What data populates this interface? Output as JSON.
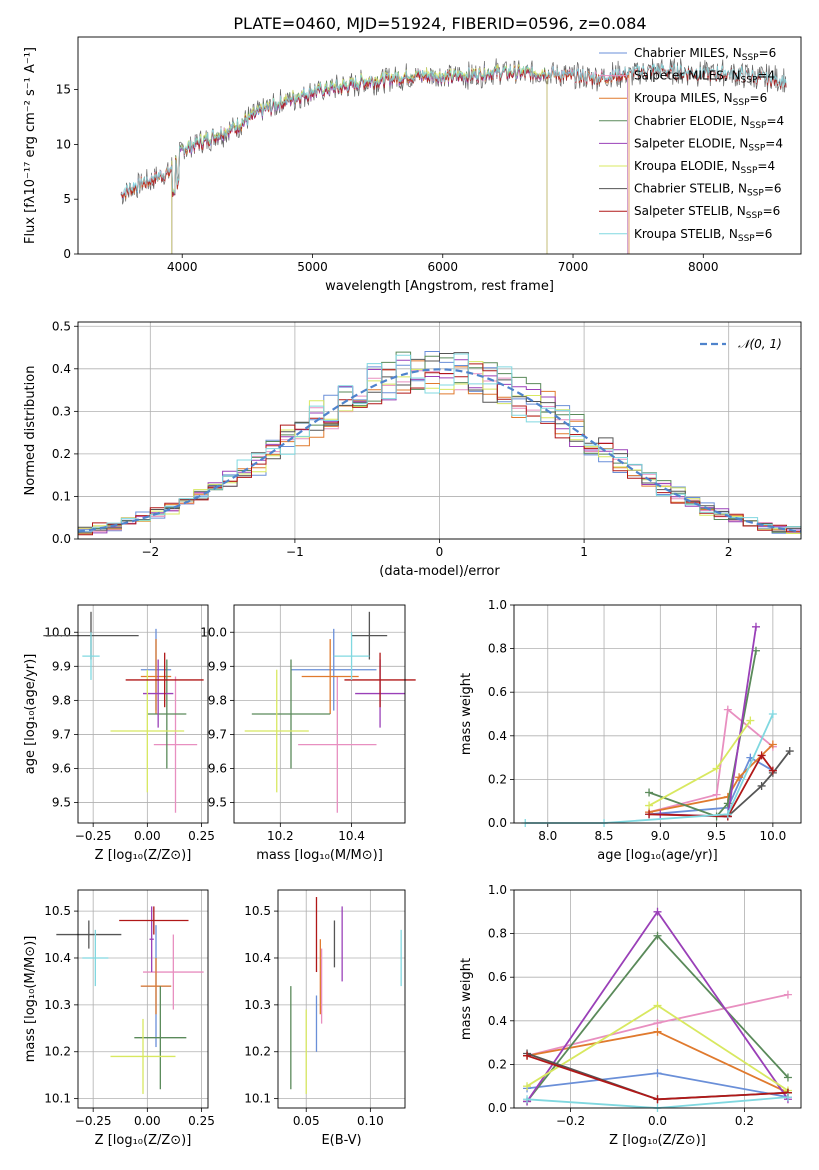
{
  "title": "PLATE=0460, MJD=51924, FIBERID=0596, z=0.084",
  "colors": [
    "#6a8fd8",
    "#e88fc0",
    "#e07a2e",
    "#5a8a5a",
    "#9a40b8",
    "#d8e860",
    "#555555",
    "#b01818",
    "#80d8e0"
  ],
  "chart_data": [
    {
      "id": "spectrum",
      "type": "line",
      "title": "PLATE=0460, MJD=51924, FIBERID=0596, z=0.084",
      "xlabel": "wavelength [Angstrom, rest frame]",
      "ylabel": "Flux [fλ10⁻¹⁷ erg cm⁻² s⁻¹ A⁻¹]",
      "xlim": [
        3200,
        8750
      ],
      "ylim": [
        0,
        19.8
      ],
      "xticks": [
        4000,
        5000,
        6000,
        7000,
        8000
      ],
      "yticks": [
        0,
        5,
        10,
        15
      ],
      "legend_position": "right",
      "series": [
        {
          "name": "Chabrier MILES, N_SSP=6",
          "label": "Chabrier MILES, N",
          "sub": "SSP",
          "suffix": "=6",
          "range": [
            3530,
            7420
          ],
          "offset": 0.0
        },
        {
          "name": "Salpeter MILES, N_SSP=4",
          "label": "Salpeter MILES, N",
          "sub": "SSP",
          "suffix": "=4",
          "range": [
            3530,
            7420
          ],
          "offset": 0.05
        },
        {
          "name": "Kroupa MILES, N_SSP=6",
          "label": "Kroupa MILES, N",
          "sub": "SSP",
          "suffix": "=6",
          "range": [
            3530,
            7430
          ],
          "offset": -0.05
        },
        {
          "name": "Chabrier ELODIE, N_SSP=4",
          "label": "Chabrier ELODIE, N",
          "sub": "SSP",
          "suffix": "=4",
          "range": [
            3920,
            6800
          ],
          "offset": 0.1
        },
        {
          "name": "Salpeter ELODIE, N_SSP=4",
          "label": "Salpeter ELODIE, N",
          "sub": "SSP",
          "suffix": "=4",
          "range": [
            3920,
            6800
          ],
          "offset": -0.1
        },
        {
          "name": "Kroupa ELODIE, N_SSP=4",
          "label": "Kroupa ELODIE, N",
          "sub": "SSP",
          "suffix": "=4",
          "range": [
            3920,
            6800
          ],
          "offset": 0.15
        },
        {
          "name": "Chabrier STELIB, N_SSP=6",
          "label": "Chabrier STELIB, N",
          "sub": "SSP",
          "suffix": "=6",
          "range": [
            3530,
            8640
          ],
          "offset": 0.0
        },
        {
          "name": "Salpeter STELIB, N_SSP=6",
          "label": "Salpeter STELIB, N",
          "sub": "SSP",
          "suffix": "=6",
          "range": [
            3530,
            8640
          ],
          "offset": -0.08
        },
        {
          "name": "Kroupa STELIB, N_SSP=6",
          "label": "Kroupa STELIB, N",
          "sub": "SSP",
          "suffix": "=6",
          "range": [
            3530,
            8640
          ],
          "offset": 0.08
        }
      ],
      "continuum": [
        [
          3530,
          5.5
        ],
        [
          3700,
          6.5
        ],
        [
          3900,
          7.5
        ],
        [
          4000,
          9.5
        ],
        [
          4200,
          10.5
        ],
        [
          4400,
          11.5
        ],
        [
          4600,
          13
        ],
        [
          4800,
          14
        ],
        [
          5000,
          14.8
        ],
        [
          5200,
          15.2
        ],
        [
          5400,
          15.7
        ],
        [
          5600,
          16
        ],
        [
          5800,
          16.3
        ],
        [
          6000,
          16.2
        ],
        [
          6200,
          16.3
        ],
        [
          6400,
          16.6
        ],
        [
          6600,
          16.5
        ],
        [
          6800,
          16.5
        ],
        [
          7000,
          16.2
        ],
        [
          7200,
          16.1
        ],
        [
          7400,
          16.4
        ],
        [
          7600,
          16.8
        ],
        [
          7800,
          16.6
        ],
        [
          8000,
          16.5
        ],
        [
          8200,
          16.5
        ],
        [
          8400,
          16.2
        ],
        [
          8640,
          15.8
        ]
      ]
    },
    {
      "id": "residuals",
      "type": "histogram",
      "xlabel": "(data-model)/error",
      "ylabel": "Normed distribution",
      "xlim": [
        -2.5,
        2.5
      ],
      "ylim": [
        0,
        0.51
      ],
      "xticks": [
        -2,
        -1,
        0,
        1,
        2
      ],
      "yticks": [
        0.0,
        0.1,
        0.2,
        0.3,
        0.4,
        0.5
      ],
      "grid": true,
      "legend_position": "top-right",
      "legend_label": "𝒩(0, 1)",
      "bin_width": 0.1
    },
    {
      "id": "age-vs-Z",
      "type": "scatter",
      "xlabel": "Z [log₁₀(Z/Z⊙)]",
      "ylabel": "age [log₁₀(age/yr)]",
      "xlim": [
        -0.32,
        0.28
      ],
      "ylim": [
        9.44,
        10.08
      ],
      "xticks": [
        -0.25,
        0.0,
        0.25
      ],
      "yticks": [
        9.5,
        9.6,
        9.7,
        9.8,
        9.9,
        10.0
      ],
      "points": [
        {
          "x": 0.04,
          "y": 9.89,
          "xerr": 0.07,
          "yerr": 0.12
        },
        {
          "x": 0.13,
          "y": 9.67,
          "xerr": 0.1,
          "yerr": 0.2
        },
        {
          "x": 0.04,
          "y": 9.87,
          "xerr": 0.07,
          "yerr": 0.11
        },
        {
          "x": 0.09,
          "y": 9.76,
          "xerr": 0.09,
          "yerr": 0.16
        },
        {
          "x": 0.05,
          "y": 9.82,
          "xerr": 0.07,
          "yerr": 0.1
        },
        {
          "x": 0.0,
          "y": 9.71,
          "xerr": 0.17,
          "yerr": 0.18
        },
        {
          "x": -0.26,
          "y": 9.99,
          "xerr": 0.22,
          "yerr": 0.07
        },
        {
          "x": 0.08,
          "y": 9.86,
          "xerr": 0.18,
          "yerr": 0.08
        },
        {
          "x": -0.26,
          "y": 9.93,
          "xerr": 0.04,
          "yerr": 0.07
        }
      ]
    },
    {
      "id": "age-vs-mass",
      "type": "scatter",
      "xlabel": "mass [log₁₀(M/M⊙)]",
      "ylabel": "",
      "xlim": [
        10.07,
        10.55
      ],
      "ylim": [
        9.44,
        10.08
      ],
      "xticks": [
        10.2,
        10.4
      ],
      "yticks": [
        9.5,
        9.6,
        9.7,
        9.8,
        9.9,
        10.0
      ],
      "points": [
        {
          "x": 10.35,
          "y": 9.89,
          "xerr": 0.12,
          "yerr": 0.12
        },
        {
          "x": 10.36,
          "y": 9.67,
          "xerr": 0.11,
          "yerr": 0.2
        },
        {
          "x": 10.34,
          "y": 9.87,
          "xerr": 0.08,
          "yerr": 0.11
        },
        {
          "x": 10.23,
          "y": 9.76,
          "xerr": 0.11,
          "yerr": 0.16
        },
        {
          "x": 10.48,
          "y": 9.82,
          "xerr": 0.07,
          "yerr": 0.1
        },
        {
          "x": 10.19,
          "y": 9.71,
          "xerr": 0.09,
          "yerr": 0.18
        },
        {
          "x": 10.45,
          "y": 9.99,
          "xerr": 0.05,
          "yerr": 0.07
        },
        {
          "x": 10.48,
          "y": 9.86,
          "xerr": 0.1,
          "yerr": 0.08
        },
        {
          "x": 10.4,
          "y": 9.93,
          "xerr": 0.05,
          "yerr": 0.07
        }
      ]
    },
    {
      "id": "weight-vs-age",
      "type": "line",
      "xlabel": "age [log₁₀(age/yr)]",
      "ylabel": "mass weight",
      "xlim": [
        7.7,
        10.25
      ],
      "ylim": [
        0,
        1.0
      ],
      "xticks": [
        8.0,
        8.5,
        9.0,
        9.5,
        10.0
      ],
      "yticks": [
        0.0,
        0.2,
        0.4,
        0.6,
        0.8,
        1.0
      ],
      "grid": true,
      "series": [
        {
          "x": [
            8.9,
            9.6,
            9.8,
            10.0
          ],
          "y": [
            0.04,
            0.07,
            0.3,
            0.24
          ]
        },
        {
          "x": [
            8.9,
            9.5,
            9.6,
            10.0
          ],
          "y": [
            0.05,
            0.13,
            0.52,
            0.35
          ]
        },
        {
          "x": [
            8.9,
            9.6,
            9.7,
            10.0
          ],
          "y": [
            0.05,
            0.12,
            0.21,
            0.36
          ]
        },
        {
          "x": [
            8.9,
            9.5,
            9.6,
            9.85
          ],
          "y": [
            0.14,
            0.03,
            0.09,
            0.79
          ]
        },
        {
          "x": [
            9.0,
            9.6,
            9.85
          ],
          "y": [
            0.04,
            0.03,
            0.9
          ]
        },
        {
          "x": [
            8.9,
            9.5,
            9.8
          ],
          "y": [
            0.08,
            0.25,
            0.47
          ]
        },
        {
          "x": [
            9.6,
            9.9,
            10.0,
            10.15
          ],
          "y": [
            0.03,
            0.17,
            0.23,
            0.33
          ]
        },
        {
          "x": [
            8.9,
            9.6,
            9.9,
            10.0
          ],
          "y": [
            0.04,
            0.03,
            0.31,
            0.24
          ]
        },
        {
          "x": [
            7.8,
            8.5,
            9.6,
            10.0
          ],
          "y": [
            0.0,
            0.0,
            0.04,
            0.5
          ]
        }
      ]
    },
    {
      "id": "mass-vs-Z",
      "type": "scatter",
      "xlabel": "Z [log₁₀(Z/Z⊙)]",
      "ylabel": "mass [log₁₀(M/M⊙)]",
      "xlim": [
        -0.32,
        0.28
      ],
      "ylim": [
        10.08,
        10.545
      ],
      "xticks": [
        -0.25,
        0.0,
        0.25
      ],
      "yticks": [
        10.1,
        10.2,
        10.3,
        10.4,
        10.5
      ],
      "points": [
        {
          "x": 0.04,
          "y": 10.34,
          "xerr": 0.07,
          "yerr": 0.13
        },
        {
          "x": 0.12,
          "y": 10.37,
          "xerr": 0.14,
          "yerr": 0.08
        },
        {
          "x": 0.04,
          "y": 10.34,
          "xerr": 0.07,
          "yerr": 0.06
        },
        {
          "x": 0.06,
          "y": 10.23,
          "xerr": 0.12,
          "yerr": 0.11
        },
        {
          "x": 0.02,
          "y": 10.44,
          "xerr": 0.01,
          "yerr": 0.07
        },
        {
          "x": -0.02,
          "y": 10.19,
          "xerr": 0.15,
          "yerr": 0.08
        },
        {
          "x": -0.27,
          "y": 10.45,
          "xerr": 0.15,
          "yerr": 0.03
        },
        {
          "x": 0.03,
          "y": 10.48,
          "xerr": 0.16,
          "yerr": 0.03
        },
        {
          "x": -0.24,
          "y": 10.4,
          "xerr": 0.06,
          "yerr": 0.06
        }
      ]
    },
    {
      "id": "mass-vs-EBV",
      "type": "scatter",
      "xlabel": "E(B-V)",
      "ylabel": "",
      "xlim": [
        0.028,
        0.127
      ],
      "ylim": [
        10.08,
        10.545
      ],
      "xticks": [
        0.05,
        0.1
      ],
      "yticks": [
        10.1,
        10.2,
        10.3,
        10.4,
        10.5
      ],
      "points": [
        {
          "x": 0.058,
          "y": 10.26,
          "xerr": 0,
          "yerr": 0.06
        },
        {
          "x": 0.062,
          "y": 10.34,
          "xerr": 0,
          "yerr": 0.08
        },
        {
          "x": 0.061,
          "y": 10.36,
          "xerr": 0,
          "yerr": 0.08
        },
        {
          "x": 0.038,
          "y": 10.23,
          "xerr": 0,
          "yerr": 0.11
        },
        {
          "x": 0.078,
          "y": 10.43,
          "xerr": 0,
          "yerr": 0.08
        },
        {
          "x": 0.05,
          "y": 10.2,
          "xerr": 0,
          "yerr": 0.09
        },
        {
          "x": 0.072,
          "y": 10.43,
          "xerr": 0,
          "yerr": 0.05
        },
        {
          "x": 0.058,
          "y": 10.45,
          "xerr": 0,
          "yerr": 0.08
        },
        {
          "x": 0.124,
          "y": 10.4,
          "xerr": 0,
          "yerr": 0.06
        }
      ]
    },
    {
      "id": "weight-vs-Z",
      "type": "line",
      "xlabel": "Z [log₁₀(Z/Z⊙)]",
      "ylabel": "mass weight",
      "xlim": [
        -0.33,
        0.33
      ],
      "ylim": [
        0,
        1.0
      ],
      "xticks": [
        -0.2,
        0.0,
        0.2
      ],
      "yticks": [
        0.0,
        0.2,
        0.4,
        0.6,
        0.8,
        1.0
      ],
      "grid": true,
      "series": [
        {
          "x": [
            -0.3,
            0.0,
            0.3
          ],
          "y": [
            0.09,
            0.16,
            0.05
          ]
        },
        {
          "x": [
            -0.3,
            0.0,
            0.3
          ],
          "y": [
            0.24,
            0.39,
            0.52
          ]
        },
        {
          "x": [
            -0.3,
            0.0,
            0.3
          ],
          "y": [
            0.24,
            0.35,
            0.07
          ]
        },
        {
          "x": [
            -0.3,
            0.0,
            0.3
          ],
          "y": [
            0.03,
            0.79,
            0.14
          ]
        },
        {
          "x": [
            -0.3,
            0.0,
            0.3
          ],
          "y": [
            0.03,
            0.9,
            0.04
          ]
        },
        {
          "x": [
            -0.3,
            0.0,
            0.3
          ],
          "y": [
            0.1,
            0.47,
            0.08
          ]
        },
        {
          "x": [
            -0.3,
            0.0,
            0.3
          ],
          "y": [
            0.25,
            0.04,
            0.07
          ]
        },
        {
          "x": [
            -0.3,
            0.0,
            0.3
          ],
          "y": [
            0.24,
            0.04,
            0.07
          ]
        },
        {
          "x": [
            -0.3,
            0.0,
            0.3
          ],
          "y": [
            0.04,
            0.0,
            0.05
          ]
        }
      ]
    }
  ]
}
